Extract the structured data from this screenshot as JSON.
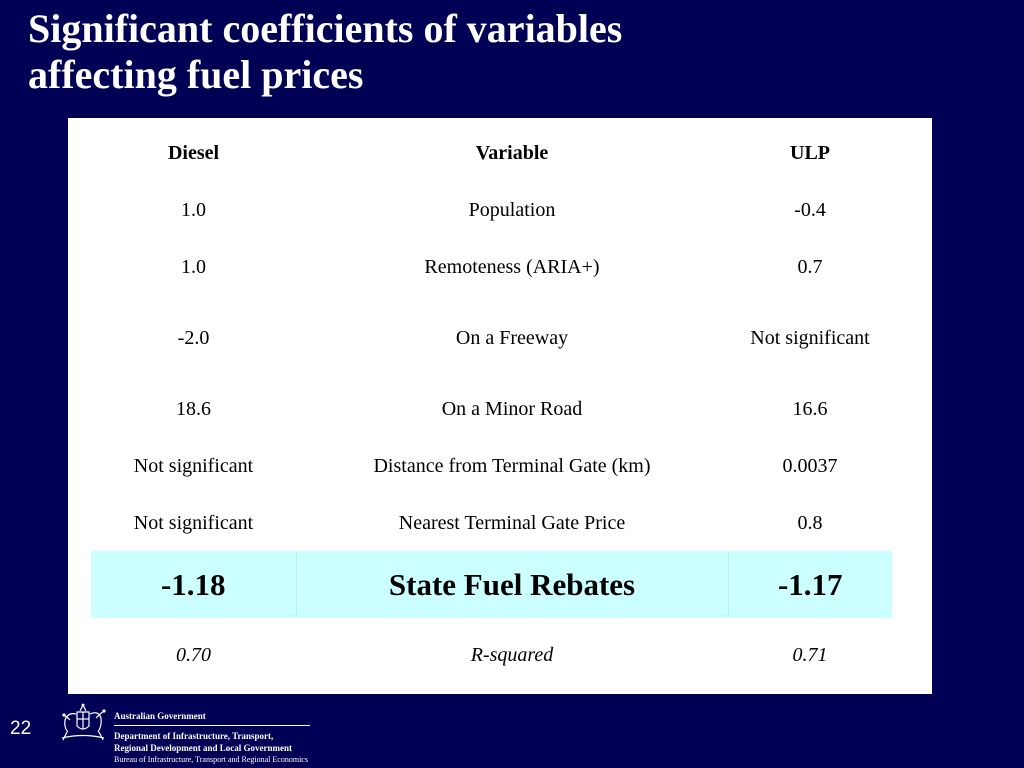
{
  "slide": {
    "title_line1": "Significant coefficients of variables",
    "title_line2": "affecting fuel prices",
    "number": "22"
  },
  "table": {
    "headers": [
      "Diesel",
      "Variable",
      "ULP"
    ],
    "rows": [
      [
        "1.0",
        "Population",
        "-0.4"
      ],
      [
        "1.0",
        "Remoteness (ARIA+)",
        "0.7"
      ],
      [
        "-2.0",
        "On a Freeway",
        "Not significant"
      ],
      [
        "18.6",
        "On a Minor Road",
        "16.6"
      ],
      [
        "Not significant",
        "Distance from Terminal Gate (km)",
        "0.0037"
      ],
      [
        "Not significant",
        "Nearest Terminal Gate Price",
        "0.8"
      ],
      [
        "-1.18",
        "State Fuel Rebates",
        "-1.17"
      ],
      [
        "0.70",
        "R-squared",
        "0.71"
      ]
    ],
    "highlight_color": "#ccffff"
  },
  "footer": {
    "government": "Australian Government",
    "department_line1": "Department of Infrastructure, Transport,",
    "department_line2": "Regional Development and Local Government",
    "bureau": "Bureau of Infrastructure, Transport and Regional Economics",
    "logo_icon": "coat-of-arms-icon"
  },
  "colors": {
    "background": "#000055",
    "panel": "#ffffff",
    "text_on_dark": "#ffffff"
  }
}
